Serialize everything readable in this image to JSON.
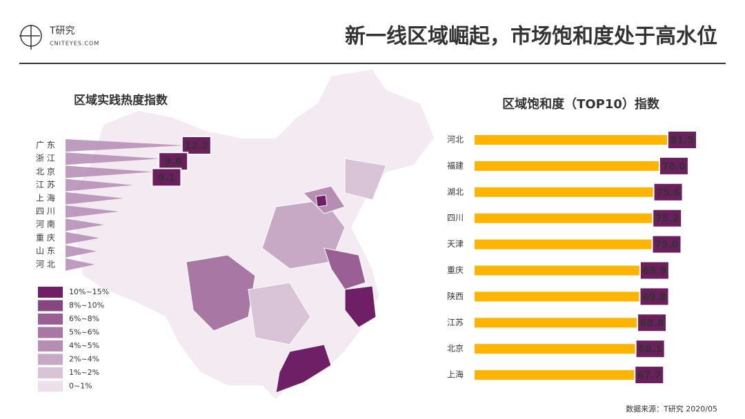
{
  "header": {
    "logo_text": "T研究",
    "logo_sub": "CNITEYES.COM",
    "title": "新一线区域崛起，市场饱和度处于高水位"
  },
  "chart_data": [
    {
      "type": "triangle-bar",
      "title": "区域实践热度指数",
      "categories": [
        "广 东",
        "浙 江",
        "北 京",
        "江 苏",
        "上 海",
        "四 川",
        "河 南",
        "重 庆",
        "山 东",
        "河 北"
      ],
      "values": [
        12.2,
        9.8,
        9.1,
        7.0,
        6.0,
        5.5,
        4.0,
        3.5,
        3.2,
        3.0
      ],
      "value_labels": [
        "12.2",
        "9.8",
        "9.1",
        null,
        null,
        null,
        null,
        null,
        null,
        null
      ],
      "color": "#b48ab4",
      "label_color": "#6b1f5c"
    },
    {
      "type": "hbar",
      "title": "区域饱和度（TOP10）指数",
      "categories": [
        "河北",
        "福建",
        "湖北",
        "四川",
        "天津",
        "重庆",
        "陕西",
        "江苏",
        "北京",
        "上海"
      ],
      "values": [
        81.5,
        78.0,
        75.6,
        75.2,
        75.0,
        69.9,
        69.8,
        68.8,
        68.1,
        67.7
      ],
      "value_labels": [
        "81.5",
        "78.0",
        "75.6",
        "75.2",
        "75.0",
        "69.9",
        "69.8",
        "68.8",
        "68.1",
        "67.7"
      ],
      "color": "#ffb400",
      "label_color": "#6b1f5c"
    }
  ],
  "map_legend": [
    {
      "label": "10%~15%",
      "color": "#6e1f66"
    },
    {
      "label": "8%~10%",
      "color": "#874581"
    },
    {
      "label": "6%~8%",
      "color": "#9a5f95"
    },
    {
      "label": "5%~6%",
      "color": "#a877a4"
    },
    {
      "label": "4%~5%",
      "color": "#b68db3"
    },
    {
      "label": "2%~4%",
      "color": "#c7a9c5"
    },
    {
      "label": "1%~2%",
      "color": "#d9c4d7"
    },
    {
      "label": "0~1%",
      "color": "#ece1eb"
    }
  ],
  "source": "数据来源：T研究 2020/05"
}
